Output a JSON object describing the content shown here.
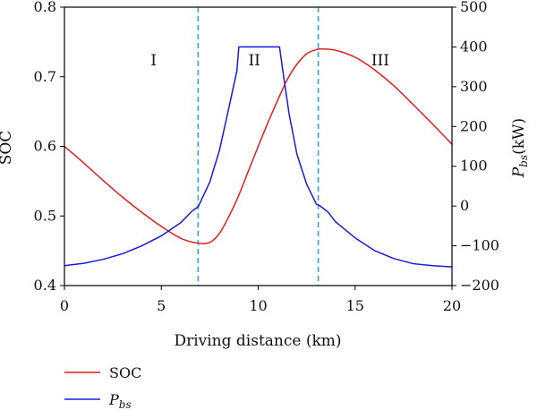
{
  "chart_data": {
    "type": "line",
    "xlabel": "Driving distance (km)",
    "ylabel_left": "SOC",
    "ylabel_right_main": "P",
    "ylabel_right_sub": "bs",
    "ylabel_right_unit": "(kW)",
    "xlim": [
      0,
      20
    ],
    "ylim_left": [
      0.4,
      0.8
    ],
    "ylim_right": [
      -200,
      500
    ],
    "x_ticks": [
      0,
      5,
      10,
      15,
      20
    ],
    "x_tick_labels": [
      "0",
      "5",
      "10",
      "15",
      "20"
    ],
    "y_left_ticks": [
      0.4,
      0.5,
      0.6,
      0.7,
      0.8
    ],
    "y_left_tick_labels": [
      "0.4",
      "0.5",
      "0.6",
      "0.7",
      "0.8"
    ],
    "y_right_ticks": [
      -200,
      -100,
      0,
      100,
      200,
      300,
      400,
      500
    ],
    "y_right_tick_labels": [
      "−200",
      "−100",
      "0",
      "100",
      "200",
      "300",
      "400",
      "500"
    ],
    "vlines": [
      6.9,
      13.1
    ],
    "vline_color": "#3aa0e0",
    "regions": [
      {
        "label": "I",
        "x": 4.6,
        "y": 0.67
      },
      {
        "label": "II",
        "x": 9.8,
        "y": 0.67
      },
      {
        "label": "III",
        "x": 16.3,
        "y": 0.67
      }
    ],
    "series": [
      {
        "name": "SOC",
        "axis": "left",
        "color": "#e02020",
        "x": [
          0,
          1,
          2,
          3,
          4,
          5,
          6,
          6.9,
          7.5,
          8.0,
          8.5,
          9.0,
          9.5,
          10.0,
          10.5,
          11.0,
          11.5,
          12.0,
          12.5,
          13.0,
          13.3,
          14,
          15,
          16,
          17,
          18,
          19,
          20
        ],
        "values": [
          0.6,
          0.576,
          0.551,
          0.527,
          0.505,
          0.485,
          0.468,
          0.461,
          0.462,
          0.475,
          0.5,
          0.53,
          0.565,
          0.6,
          0.634,
          0.666,
          0.696,
          0.718,
          0.733,
          0.739,
          0.74,
          0.738,
          0.728,
          0.71,
          0.687,
          0.66,
          0.632,
          0.603
        ]
      },
      {
        "name_main": "P",
        "name_sub": "bs",
        "axis": "right",
        "color": "#1a1adf",
        "x": [
          0,
          1,
          2,
          3,
          4,
          5,
          6,
          6.6,
          6.9,
          7.5,
          8.0,
          8.5,
          8.9,
          9.0,
          11.1,
          11.3,
          11.6,
          12.0,
          12.5,
          13.0,
          13.2,
          13.6,
          14,
          15,
          16,
          17,
          18,
          19,
          20
        ],
        "values": [
          -150,
          -144,
          -134,
          -120,
          -100,
          -75,
          -42,
          -12,
          -2,
          60,
          140,
          250,
          340,
          400,
          400,
          330,
          230,
          130,
          55,
          5,
          0,
          -15,
          -40,
          -80,
          -112,
          -132,
          -145,
          -150,
          -153
        ]
      }
    ]
  }
}
